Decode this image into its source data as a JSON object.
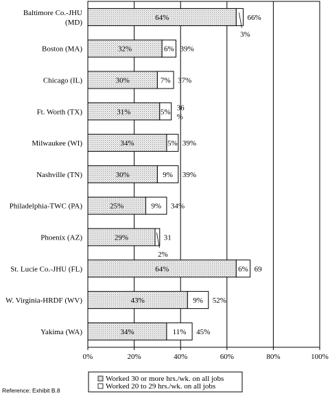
{
  "chart_data": {
    "type": "bar",
    "stacked": true,
    "orientation": "horizontal",
    "categories": [
      "Baltimore Co.-JHU (MD)",
      "Boston (MA)",
      "Chicago (IL)",
      "Ft. Worth (TX)",
      "Milwaukee (WI)",
      "Nashville (TN)",
      "Philadelphia-TWC (PA)",
      "Phoenix (AZ)",
      "St. Lucie Co.-JHU (FL)",
      "W. Virginia-HRDF (WV)",
      "Yakima (WA)"
    ],
    "category_lines": [
      [
        "Baltimore Co.-JHU",
        "(MD)"
      ],
      [
        "Boston (MA)"
      ],
      [
        "Chicago (IL)"
      ],
      [
        "Ft. Worth (TX)"
      ],
      [
        "Milwaukee (WI)"
      ],
      [
        "Nashville (TN)"
      ],
      [
        "Philadelphia-TWC (PA)"
      ],
      [
        "Phoenix (AZ)"
      ],
      [
        "St. Lucie Co.-JHU (FL)"
      ],
      [
        "W. Virginia-HRDF (WV)"
      ],
      [
        "Yakima (WA)"
      ]
    ],
    "series": [
      {
        "name": "Worked 30 or more hrs./wk. on all jobs",
        "values": [
          64,
          32,
          30,
          31,
          34,
          30,
          25,
          29,
          64,
          43,
          34
        ],
        "labels": [
          "64%",
          "32%",
          "30%",
          "31%",
          "34%",
          "30%",
          "25%",
          "29%",
          "64%",
          "43%",
          "34%"
        ]
      },
      {
        "name": "Worked 20 to 29 hrs./wk. on all jobs",
        "values": [
          3,
          6,
          7,
          5,
          5,
          9,
          9,
          2,
          6,
          9,
          11
        ],
        "labels": [
          "3%",
          "6%",
          "7%",
          "5%",
          "5%",
          "9%",
          "9%",
          "2%",
          "6%",
          "9%",
          "11%"
        ]
      }
    ],
    "totals": [
      "66%",
      "39%",
      "37%",
      "36 %",
      "39%",
      "39%",
      "34%",
      "31",
      "69",
      "52%",
      "45%"
    ],
    "xlim": [
      0,
      100
    ],
    "xticks": [
      "0%",
      "20%",
      "40%",
      "60%",
      "80%",
      "100%"
    ],
    "grid": "vertical",
    "legend_position": "bottom",
    "colors": {
      "series1_fill": "#e6e6e6",
      "series2_fill": "#ffffff",
      "stroke": "#000000"
    }
  },
  "footnote": "Reference:  Exhibit B.8"
}
